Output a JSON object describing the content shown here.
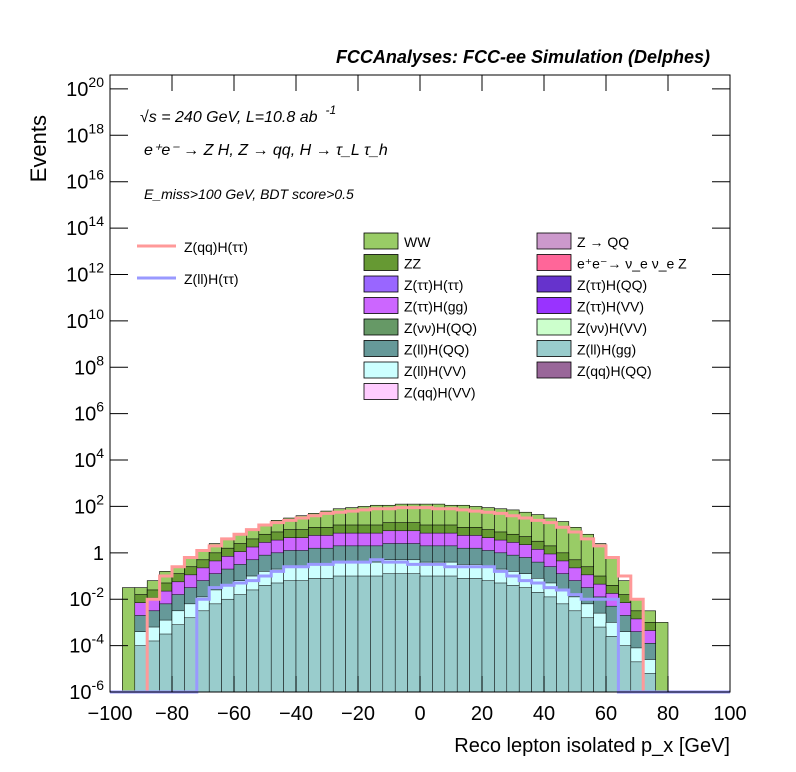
{
  "header_title": "FCCAnalyses: FCC-ee Simulation (Delphes)",
  "annotations": {
    "energy_lumi": "√s = 240 GeV, L=10.8 ab",
    "energy_lumi_sup": "-1",
    "process": "e⁺e⁻ → Z H, Z → qq, H → τ_L τ_h",
    "selection": "E_miss>100 GeV, BDT score>0.5"
  },
  "chart_data": {
    "type": "bar",
    "subtype": "stacked-histogram-log",
    "title": "FCCAnalyses: FCC-ee Simulation (Delphes)",
    "xlabel": "Reco lepton isolated p_x [GeV]",
    "ylabel": "Events",
    "xlim": [
      -100,
      100
    ],
    "ylim_log10": [
      -6,
      20.6
    ],
    "x_ticks": [
      "−100",
      "−80",
      "−60",
      "−40",
      "−20",
      "0",
      "20",
      "40",
      "60",
      "80",
      "100"
    ],
    "y_ticks": [
      "10^-6",
      "10^-4",
      "10^-2",
      "1",
      "10^2",
      "10^4",
      "10^6",
      "10^8",
      "10^10",
      "10^12",
      "10^14",
      "10^16",
      "10^18",
      "10^20"
    ],
    "bin_width": 4,
    "x_range_filled": [
      -100,
      100
    ],
    "legend_lines": [
      {
        "name": "Z(qq)H(ττ)",
        "color": "#ff9999"
      },
      {
        "name": "Z(ll)H(ττ)",
        "color": "#9999ff"
      }
    ],
    "legend_fills": [
      {
        "name": "WW",
        "color": "#99cc66"
      },
      {
        "name": "Z → QQ",
        "color": "#cc99cc"
      },
      {
        "name": "ZZ",
        "color": "#669933"
      },
      {
        "name": "e⁺e⁻→ ν_e ν_e Z",
        "color": "#ff6699"
      },
      {
        "name": "Z(ττ)H(ττ)",
        "color": "#9966ff"
      },
      {
        "name": "Z(ττ)H(QQ)",
        "color": "#6633cc"
      },
      {
        "name": "Z(ττ)H(gg)",
        "color": "#cc66ff"
      },
      {
        "name": "Z(ττ)H(VV)",
        "color": "#9933ff"
      },
      {
        "name": "Z(νν)H(QQ)",
        "color": "#669966"
      },
      {
        "name": "Z(νν)H(VV)",
        "color": "#ccffcc"
      },
      {
        "name": "Z(ll)H(QQ)",
        "color": "#669999"
      },
      {
        "name": "Z(ll)H(gg)",
        "color": "#99cccc"
      },
      {
        "name": "Z(ll)H(VV)",
        "color": "#ccffff"
      },
      {
        "name": "Z(qq)H(QQ)",
        "color": "#996699"
      },
      {
        "name": "Z(qq)H(VV)",
        "color": "#ffccff"
      }
    ],
    "series_log10_upper_edges": {
      "WW_total": [
        -6,
        -1.5,
        -1.5,
        -1.2,
        -0.8,
        -0.6,
        -0.2,
        0.1,
        0.4,
        0.6,
        0.8,
        1.0,
        1.2,
        1.4,
        1.5,
        1.6,
        1.7,
        1.8,
        1.9,
        1.95,
        2.0,
        2.05,
        2.05,
        2.1,
        2.1,
        2.1,
        2.1,
        2.05,
        2.05,
        2.0,
        1.95,
        1.9,
        1.85,
        1.75,
        1.65,
        1.5,
        1.35,
        1.1,
        0.8,
        0.4,
        -0.2,
        -1.2,
        -2.0,
        -2.5,
        -3.0,
        -6,
        -6,
        -6,
        -6,
        -6
      ],
      "ZZ_total": [
        -6,
        -6,
        -1.8,
        -1.6,
        -1.3,
        -0.9,
        -0.6,
        -0.3,
        0.0,
        0.2,
        0.4,
        0.6,
        0.8,
        0.9,
        1.0,
        1.0,
        1.1,
        1.1,
        1.2,
        1.2,
        1.2,
        1.2,
        1.3,
        1.3,
        1.3,
        1.2,
        1.2,
        1.2,
        1.1,
        1.1,
        1.0,
        0.9,
        0.8,
        0.7,
        0.5,
        0.3,
        0.0,
        -0.3,
        -0.6,
        -1.0,
        -1.4,
        -1.8,
        -2.5,
        -3.0,
        -6,
        -6,
        -6,
        -6,
        -6,
        -6
      ],
      "ZqqHtautau_line": [
        -6,
        -6,
        -6,
        -2.0,
        -1.0,
        -0.6,
        -0.2,
        0.1,
        0.3,
        0.6,
        0.8,
        1.0,
        1.2,
        1.3,
        1.4,
        1.5,
        1.6,
        1.7,
        1.75,
        1.8,
        1.85,
        1.9,
        1.9,
        1.95,
        1.95,
        1.95,
        1.9,
        1.9,
        1.85,
        1.8,
        1.75,
        1.7,
        1.6,
        1.5,
        1.4,
        1.3,
        1.1,
        0.9,
        0.6,
        0.3,
        -0.2,
        -1.0,
        -2.0,
        -6,
        -6,
        -6,
        -6,
        -6,
        -6,
        -6
      ],
      "ZllHtautau_line": [
        -6,
        -6,
        -6,
        -6,
        -6,
        -6,
        -6,
        -2.0,
        -1.5,
        -1.4,
        -1.3,
        -1.2,
        -1.0,
        -0.8,
        -0.6,
        -0.6,
        -0.5,
        -0.5,
        -0.4,
        -0.4,
        -0.4,
        -0.3,
        -0.4,
        -0.4,
        -0.5,
        -0.5,
        -0.5,
        -0.6,
        -0.6,
        -0.6,
        -0.6,
        -0.8,
        -1.0,
        -1.2,
        -1.3,
        -1.5,
        -1.6,
        -1.8,
        -2.0,
        -2.0,
        -2.0,
        -6,
        -6,
        -6,
        -6,
        -6,
        -6,
        -6,
        -6,
        -6
      ]
    }
  }
}
